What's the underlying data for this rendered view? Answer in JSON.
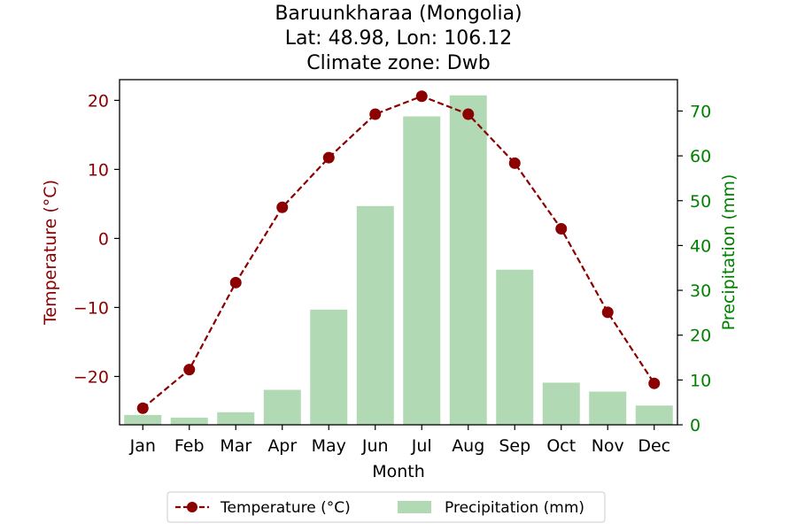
{
  "chart_data": {
    "type": "bar+line",
    "title": [
      "Baruunkharaa (Mongolia)",
      "Lat: 48.98, Lon: 106.12",
      "Climate zone: Dwb"
    ],
    "xlabel": "Month",
    "ylabel_left": "Temperature (°C)",
    "ylabel_right": "Precipitation (mm)",
    "categories": [
      "Jan",
      "Feb",
      "Mar",
      "Apr",
      "May",
      "Jun",
      "Jul",
      "Aug",
      "Sep",
      "Oct",
      "Nov",
      "Dec"
    ],
    "temperature": {
      "name": "Temperature (°C)",
      "values": [
        -24.6,
        -19.0,
        -6.4,
        4.5,
        11.7,
        18.0,
        20.6,
        18.0,
        10.9,
        1.4,
        -10.7,
        -21.0
      ],
      "color": "#8b0000",
      "style": "dashed line with circle markers"
    },
    "precipitation": {
      "name": "Precipitation (mm)",
      "values": [
        2.2,
        1.6,
        2.8,
        7.8,
        25.7,
        48.8,
        68.8,
        73.5,
        34.6,
        9.4,
        7.4,
        4.3
      ],
      "color": "#b1d9b4"
    },
    "ylim_left": [
      -27,
      23
    ],
    "ylim_right": [
      0,
      77
    ],
    "yticks_left": [
      -20,
      -10,
      0,
      10,
      20
    ],
    "yticks_right": [
      0,
      10,
      20,
      30,
      40,
      50,
      60,
      70
    ],
    "left_axis_color": "#8b0000",
    "right_axis_color": "#008000",
    "grid": false,
    "legend": {
      "placement": "bottom-center",
      "entries": [
        "Temperature (°C)",
        "Precipitation (mm)"
      ]
    }
  }
}
